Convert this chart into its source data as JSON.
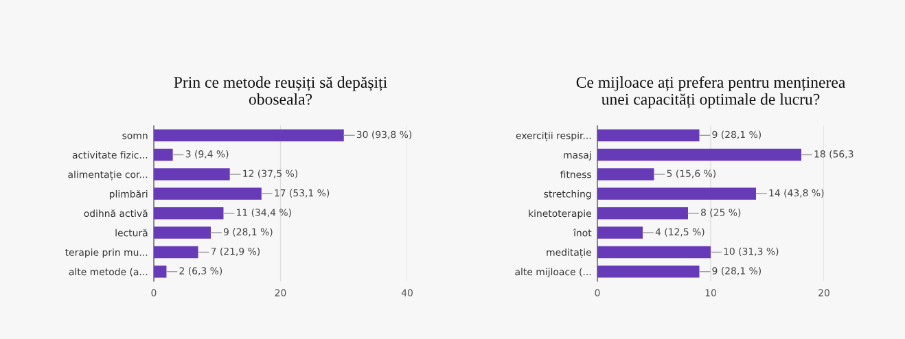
{
  "chart_data": [
    {
      "type": "bar",
      "orientation": "horizontal",
      "title": "Prin ce metode reușiți să depășiți\noboseala?",
      "categories": [
        "somn",
        "activitate fizic...",
        "alimentație cor...",
        "plimbări",
        "odihnă activă",
        "lectură",
        "terapie prin mu...",
        "alte metode (a..."
      ],
      "values": [
        30,
        3,
        12,
        17,
        11,
        9,
        7,
        2
      ],
      "color": "#673ab7",
      "value_labels": [
        "30 (93,8 %)",
        "3 (9,4 %)",
        "12 (37,5 %)",
        "17 (53,1 %)",
        "11 (34,4 %)",
        "9 (28,1 %)",
        "7 (21,9 %)",
        "2 (6,3 %)"
      ],
      "xlim": [
        0,
        40
      ],
      "xticks": [
        0,
        20,
        40
      ],
      "grid": "x"
    },
    {
      "type": "bar",
      "orientation": "horizontal",
      "title": "Ce mijloace ați prefera pentru menținerea\nunei capacități optimale de lucru?",
      "categories": [
        "exerciții respir...",
        "masaj",
        "fitness",
        "stretching",
        "kinetoterapie",
        "înot",
        "meditație",
        "alte mijloace (..."
      ],
      "values": [
        9,
        18,
        5,
        14,
        8,
        4,
        10,
        9
      ],
      "color": "#673ab7",
      "value_labels": [
        "9 (28,1 %)",
        "18 (56,3",
        "5 (15,6 %)",
        "14 (43,8 %)",
        "8 (25 %)",
        "4 (12,5 %)",
        "10 (31,3 %)",
        "9 (28,1 %)"
      ],
      "xlim": [
        0,
        20
      ],
      "xticks": [
        0,
        10,
        20
      ],
      "grid": "x"
    }
  ]
}
